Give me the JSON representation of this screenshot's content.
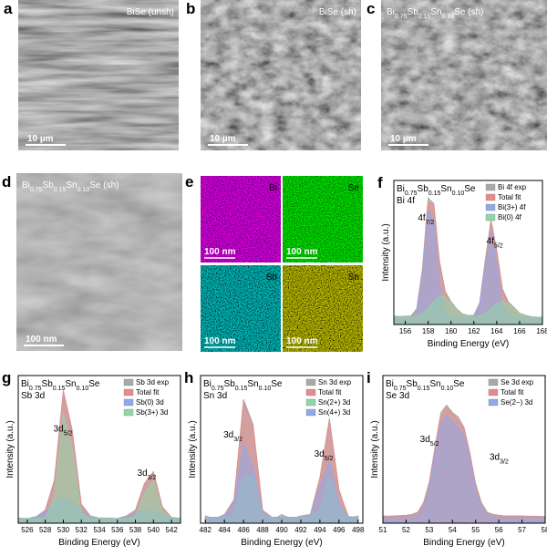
{
  "images": [
    {
      "letter": "a",
      "label": [
        "BiSe (unsh)"
      ],
      "scale": "10 µm"
    },
    {
      "letter": "b",
      "label": [
        "BiSe (sh)"
      ],
      "scale": "10 µm"
    },
    {
      "letter": "c",
      "label": [
        "Bi",
        "0.75",
        "Sb",
        "0.15",
        "Sn",
        "0.10",
        "Se (sh)"
      ],
      "scale": "10 µm"
    },
    {
      "letter": "d",
      "label": [
        "Bi",
        "0.75",
        "Sb",
        "0.15",
        "Sn",
        "0.10",
        "Se (sh)"
      ],
      "scale": "100 nm"
    }
  ],
  "maps": {
    "letter": "e",
    "elements": [
      {
        "name": "Bi",
        "scale": "100 nm"
      },
      {
        "name": "Se",
        "scale": "100 nm"
      },
      {
        "name": "Sb",
        "scale": "100 nm"
      },
      {
        "name": "Sn",
        "scale": "100 nm"
      }
    ]
  },
  "chart_data": [
    {
      "type": "area",
      "letter": "f",
      "title": [
        "Bi",
        "0.75",
        "Sb",
        "0.15",
        "Sn",
        "0.10",
        "Se"
      ],
      "subtitle": "Bi 4f",
      "xlabel": "Binding Energy (eV)",
      "ylabel": "Intensity (a.u.)",
      "xlim": [
        155,
        168
      ],
      "xticks": [
        156,
        158,
        160,
        162,
        164,
        166,
        168
      ],
      "ylim": [
        0,
        100
      ],
      "x": [
        155,
        155.5,
        156,
        156.5,
        157,
        157.5,
        158,
        158.5,
        159,
        159.5,
        160,
        160.5,
        161,
        161.5,
        162,
        162.5,
        163,
        163.5,
        164,
        164.5,
        165,
        165.5,
        166,
        166.5,
        167,
        167.5,
        168
      ],
      "annotations": [
        [
          "4f",
          "7/2"
        ],
        [
          "4f",
          "5/2"
        ]
      ],
      "series": [
        {
          "name": "Bi 4f exp",
          "color": "#a9a9a9",
          "values": [
            6,
            5.5,
            5.8,
            6,
            11,
            39,
            88,
            84,
            44,
            23,
            16,
            11,
            7.5,
            6.3,
            6.5,
            15,
            45,
            73,
            52,
            25,
            16,
            12,
            8,
            6.5,
            5.5,
            5.2,
            5
          ]
        },
        {
          "name": "Total fit",
          "color": "#e88a8a",
          "values": [
            5,
            5,
            5,
            5.4,
            10,
            38,
            85,
            83,
            42,
            22,
            15,
            10,
            7,
            5.6,
            5.7,
            14,
            44,
            71,
            50,
            24,
            15,
            11,
            7.7,
            5.9,
            5,
            5,
            5
          ]
        },
        {
          "name": "Bi(3+) 4f",
          "color": "#8fa8e8",
          "values": [
            5,
            5,
            5,
            5.2,
            9.5,
            35,
            79,
            72,
            27,
            7.7,
            5.1,
            5,
            5,
            5,
            5.7,
            13,
            41,
            65,
            41,
            13,
            5.7,
            5,
            5,
            5,
            5,
            5,
            5
          ]
        },
        {
          "name": "Bi(0) 4f",
          "color": "#8fd6a8",
          "values": [
            5,
            5,
            5,
            5.2,
            5.8,
            7.5,
            11,
            16,
            20,
            19,
            15,
            10,
            7,
            5.6,
            5,
            5.9,
            7.7,
            11,
            14.5,
            16,
            14.5,
            11,
            7.7,
            5.9,
            5,
            5,
            5
          ]
        }
      ]
    },
    {
      "type": "area",
      "letter": "g",
      "title": [
        "Bi",
        "0.75",
        "Sb",
        "0.15",
        "Sn",
        "0.10",
        "Se"
      ],
      "subtitle": "Sb 3d",
      "xlabel": "Binding Energy (eV)",
      "ylabel": "Intensity (a.u.)",
      "xlim": [
        525,
        543
      ],
      "xticks": [
        526,
        528,
        530,
        532,
        534,
        536,
        538,
        540,
        542
      ],
      "ylim": [
        0,
        100
      ],
      "x": [
        525,
        526,
        527,
        528,
        529,
        530,
        531,
        532,
        533,
        534,
        535,
        536,
        537,
        538,
        539,
        540,
        541,
        542,
        543
      ],
      "annotations": [
        [
          "3d",
          "5/2"
        ],
        [
          "3d",
          "3/2"
        ]
      ],
      "series": [
        {
          "name": "Sb 3d exp",
          "color": "#a9a9a9",
          "values": [
            3.5,
            3.2,
            4.5,
            9,
            29,
            90,
            63,
            13,
            5,
            3.5,
            3.6,
            3.2,
            5,
            9,
            27,
            35,
            11,
            4,
            3.3
          ]
        },
        {
          "name": "Total fit",
          "color": "#e88a8a",
          "values": [
            3,
            3,
            4,
            8,
            28,
            89,
            61,
            12,
            4,
            3.1,
            3,
            3,
            4.2,
            8.1,
            26,
            34,
            10.5,
            3.8,
            3
          ]
        },
        {
          "name": "Sb(0) 3d",
          "color": "#8fa8e8",
          "values": [
            3,
            3,
            4,
            7.6,
            14,
            18,
            14,
            7.6,
            4,
            3.1,
            3,
            3,
            4.2,
            6.6,
            8.8,
            8.2,
            5.5,
            3.7,
            3
          ]
        },
        {
          "name": "Sb(3+) 3d",
          "color": "#8fd6a8",
          "values": [
            3,
            3,
            3,
            3.4,
            17,
            74,
            50,
            7,
            3,
            3,
            3,
            3,
            3,
            4.5,
            20,
            28.5,
            8,
            3.1,
            3
          ]
        }
      ]
    },
    {
      "type": "area",
      "letter": "h",
      "title": [
        "Bi",
        "0.75",
        "Sb",
        "0.15",
        "Sn",
        "0.10",
        "Se"
      ],
      "subtitle": "Sn 3d",
      "xlabel": "Binding Energy (eV)",
      "ylabel": "Intensity (a.u.)",
      "xlim": [
        481.5,
        498.5
      ],
      "xticks": [
        482,
        484,
        486,
        488,
        490,
        492,
        494,
        496,
        498
      ],
      "ylim": [
        0,
        100
      ],
      "x": [
        482,
        483,
        484,
        485,
        486,
        487,
        488,
        489,
        490,
        491,
        492,
        493,
        494,
        495,
        496,
        497,
        498
      ],
      "annotations": [
        [
          "3d",
          "3/2"
        ],
        [
          "3d",
          "5/2"
        ]
      ],
      "series": [
        {
          "name": "Sn 3d exp",
          "color": "#a9a9a9",
          "values": [
            5,
            3,
            6,
            16,
            84,
            67,
            9,
            2,
            6,
            3,
            5,
            6,
            31,
            71,
            23,
            3,
            5
          ]
        },
        {
          "name": "Total fit",
          "color": "#e88a8a",
          "values": [
            4,
            4,
            4.3,
            15.8,
            82,
            65.5,
            8.8,
            4,
            4,
            4,
            4,
            5.5,
            30,
            69.6,
            22,
            4.5,
            4
          ]
        },
        {
          "name": "Sn(2+) 3d",
          "color": "#8fd6a8",
          "values": [
            4,
            4,
            4,
            5.8,
            32,
            32,
            5.8,
            4,
            4,
            4,
            4,
            4,
            9.2,
            31.6,
            13,
            4.2,
            4
          ]
        },
        {
          "name": "Sn(4+) 3d",
          "color": "#8fa8e8",
          "values": [
            4,
            4,
            4.3,
            14,
            54,
            37.5,
            7,
            4,
            4,
            4,
            4,
            5.5,
            25,
            42,
            13,
            4.3,
            4
          ]
        }
      ]
    },
    {
      "type": "area",
      "letter": "i",
      "title": [
        "Bi",
        "0.75",
        "Sb",
        "0.15",
        "Sn",
        "0.10",
        "Se"
      ],
      "subtitle": "Se 3d",
      "xlabel": "Binding Energy (eV)",
      "ylabel": "Intensity (a.u.)",
      "xlim": [
        51,
        58
      ],
      "xticks": [
        51,
        52,
        53,
        54,
        55,
        56,
        57,
        58
      ],
      "ylim": [
        0,
        100
      ],
      "x": [
        51,
        51.25,
        51.5,
        51.75,
        52,
        52.25,
        52.5,
        52.75,
        53,
        53.25,
        53.5,
        53.75,
        54,
        54.25,
        54.5,
        54.75,
        55,
        55.25,
        55.5,
        55.75,
        56,
        56.25,
        56.5,
        56.75,
        57,
        57.25,
        57.5,
        57.75,
        58
      ],
      "annotations": [
        [
          "3d",
          "5/2"
        ],
        [
          "3d",
          "3/2"
        ]
      ],
      "series": [
        {
          "name": "Se 3d exp",
          "color": "#a9a9a9",
          "values": [
            5,
            4.8,
            5,
            5.2,
            5.5,
            6,
            7.5,
            14,
            28,
            52,
            75,
            80,
            75,
            72,
            65,
            48,
            27,
            14,
            7.5,
            6,
            5.5,
            5,
            5,
            5,
            5,
            4.8,
            4.8,
            4.7,
            4.5
          ]
        },
        {
          "name": "Total fit",
          "color": "#e88a8a",
          "values": [
            4.5,
            4.5,
            4.6,
            4.8,
            5,
            5.5,
            7,
            13,
            27,
            50,
            72,
            79,
            74,
            70,
            64,
            47,
            26,
            13,
            7,
            5.5,
            5,
            4.8,
            4.6,
            4.5,
            4.5,
            4.5,
            4.5,
            4.5,
            4.5
          ]
        },
        {
          "name": "Se(2−) 3d",
          "color": "#8fa8e8",
          "values": [
            4,
            4,
            4,
            4,
            4,
            4,
            5.4,
            10.5,
            24,
            46.5,
            67,
            73,
            69,
            65,
            59,
            43,
            23,
            11,
            5.6,
            4.3,
            4,
            4,
            4,
            4,
            4,
            4,
            4,
            4,
            4
          ]
        }
      ]
    }
  ]
}
